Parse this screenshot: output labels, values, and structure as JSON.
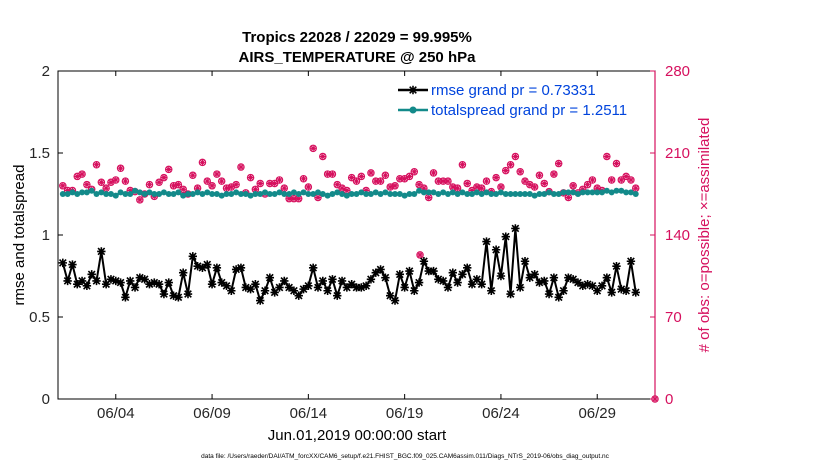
{
  "chart_data": {
    "type": "line",
    "title": "Tropics 22028 / 22029 = 99.995%",
    "subtitle": "AIRS_TEMPERATURE @ 250 hPa",
    "xlabel": "Jun.01,2019 00:00:00 start",
    "ylabel": "rmse and totalspread",
    "ylabel_right": "# of obs: o=possible; ×=assimilated",
    "xlim": [
      0,
      31
    ],
    "ylim": [
      0,
      2
    ],
    "ylim_right": [
      0,
      280
    ],
    "xticks": [
      3,
      8,
      13,
      18,
      23,
      28
    ],
    "xticklabels": [
      "06/04",
      "06/09",
      "06/14",
      "06/19",
      "06/24",
      "06/29"
    ],
    "yticks": [
      0,
      0.5,
      1,
      1.5,
      2
    ],
    "yticklabels": [
      "0",
      "0.5",
      "1",
      "1.5",
      "2"
    ],
    "yticks_right": [
      0,
      70,
      140,
      210,
      280
    ],
    "yticklabels_right": [
      "0",
      "70",
      "140",
      "210",
      "280"
    ],
    "legend_position": "top-right",
    "colors": {
      "rmse": "#000000",
      "spread": "#138a8a",
      "obs": "#d6105e",
      "axis_right": "#d6105e",
      "legend_text": "#0044dd"
    },
    "series": [
      {
        "name": "rmse grand pr = 0.73331",
        "marker": "star",
        "values": [
          0.83,
          0.72,
          0.82,
          0.7,
          0.72,
          0.69,
          0.76,
          0.72,
          0.9,
          0.7,
          0.73,
          0.72,
          0.71,
          0.62,
          0.72,
          0.68,
          0.74,
          0.73,
          0.7,
          0.71,
          0.7,
          0.64,
          0.71,
          0.63,
          0.62,
          0.77,
          0.64,
          0.87,
          0.81,
          0.8,
          0.82,
          0.7,
          0.8,
          0.71,
          0.69,
          0.66,
          0.79,
          0.8,
          0.68,
          0.67,
          0.7,
          0.6,
          0.66,
          0.74,
          0.65,
          0.68,
          0.72,
          0.68,
          0.66,
          0.63,
          0.67,
          0.69,
          0.8,
          0.68,
          0.72,
          0.66,
          0.73,
          0.63,
          0.72,
          0.68,
          0.7,
          0.68,
          0.68,
          0.69,
          0.73,
          0.77,
          0.79,
          0.74,
          0.63,
          0.6,
          0.76,
          0.68,
          0.78,
          0.66,
          0.71,
          0.84,
          0.78,
          0.78,
          0.73,
          0.72,
          0.68,
          0.77,
          0.71,
          0.76,
          0.8,
          0.7,
          0.73,
          0.7,
          0.96,
          0.66,
          0.91,
          0.75,
          0.99,
          0.64,
          1.04,
          0.68,
          0.84,
          0.74,
          0.76,
          0.71,
          0.72,
          0.64,
          0.74,
          0.62,
          0.66,
          0.74,
          0.73,
          0.71,
          0.69,
          0.7,
          0.69,
          0.66,
          0.69,
          0.74,
          0.65,
          0.81,
          0.67,
          0.66,
          0.84,
          0.65
        ],
        "color": "#000000"
      },
      {
        "name": "totalspread grand pr = 1.2511",
        "marker": "circle",
        "values": [
          1.25,
          1.25,
          1.26,
          1.25,
          1.26,
          1.26,
          1.27,
          1.25,
          1.26,
          1.25,
          1.25,
          1.24,
          1.26,
          1.25,
          1.25,
          1.27,
          1.26,
          1.25,
          1.26,
          1.25,
          1.25,
          1.26,
          1.25,
          1.25,
          1.26,
          1.24,
          1.25,
          1.25,
          1.26,
          1.25,
          1.26,
          1.25,
          1.25,
          1.24,
          1.25,
          1.25,
          1.26,
          1.25,
          1.25,
          1.24,
          1.25,
          1.25,
          1.26,
          1.25,
          1.25,
          1.26,
          1.25,
          1.25,
          1.26,
          1.25,
          1.26,
          1.25,
          1.25,
          1.26,
          1.25,
          1.24,
          1.25,
          1.26,
          1.25,
          1.24,
          1.25,
          1.25,
          1.26,
          1.25,
          1.25,
          1.26,
          1.25,
          1.26,
          1.25,
          1.25,
          1.25,
          1.24,
          1.25,
          1.25,
          1.27,
          1.26,
          1.26,
          1.26,
          1.25,
          1.26,
          1.25,
          1.26,
          1.25,
          1.26,
          1.25,
          1.25,
          1.26,
          1.25,
          1.26,
          1.25,
          1.25,
          1.26,
          1.25,
          1.25,
          1.25,
          1.25,
          1.25,
          1.25,
          1.24,
          1.25,
          1.25,
          1.26,
          1.25,
          1.25,
          1.26,
          1.26,
          1.26,
          1.25,
          1.26,
          1.26,
          1.26,
          1.26,
          1.26,
          1.27,
          1.26,
          1.27,
          1.27,
          1.26,
          1.26,
          1.25
        ],
        "color": "#138a8a"
      },
      {
        "name": "# of obs (possible / assimilated)",
        "axis": "right",
        "marker": "circle-x",
        "values": [
          182,
          178,
          178,
          190,
          192,
          183,
          179,
          200,
          185,
          180,
          185,
          187,
          197,
          186,
          178,
          177,
          170,
          175,
          183,
          173,
          185,
          189,
          196,
          182,
          183,
          179,
          175,
          191,
          180,
          202,
          186,
          182,
          192,
          186,
          180,
          181,
          183,
          198,
          176,
          189,
          179,
          184,
          175,
          184,
          184,
          187,
          180,
          171,
          171,
          171,
          188,
          181,
          214,
          172,
          207,
          192,
          192,
          183,
          180,
          178,
          189,
          186,
          190,
          178,
          193,
          186,
          186,
          191,
          181,
          182,
          188,
          188,
          190,
          194,
          183,
          180,
          172,
          193,
          186,
          186,
          186,
          181,
          180,
          200,
          184,
          178,
          181,
          180,
          186,
          177,
          189,
          181,
          195,
          200,
          207,
          194,
          186,
          183,
          181,
          191,
          184,
          177,
          192,
          201,
          176,
          172,
          182,
          176,
          179,
          183,
          187,
          180,
          178,
          207,
          187,
          201,
          187,
          190,
          187,
          180
        ]
      }
    ],
    "extra_obs_points": [
      {
        "x": 18.8,
        "y": 123
      }
    ],
    "end_obs_point": {
      "x": 31,
      "y": 0
    }
  },
  "footnote": "data file: /Users/raeder/DAI/ATM_forcXX/CAM6_setup/f.e21.FHIST_BGC.f09_025.CAM6assim.011/Diags_NTrS_2019-06/obs_diag_output.nc"
}
